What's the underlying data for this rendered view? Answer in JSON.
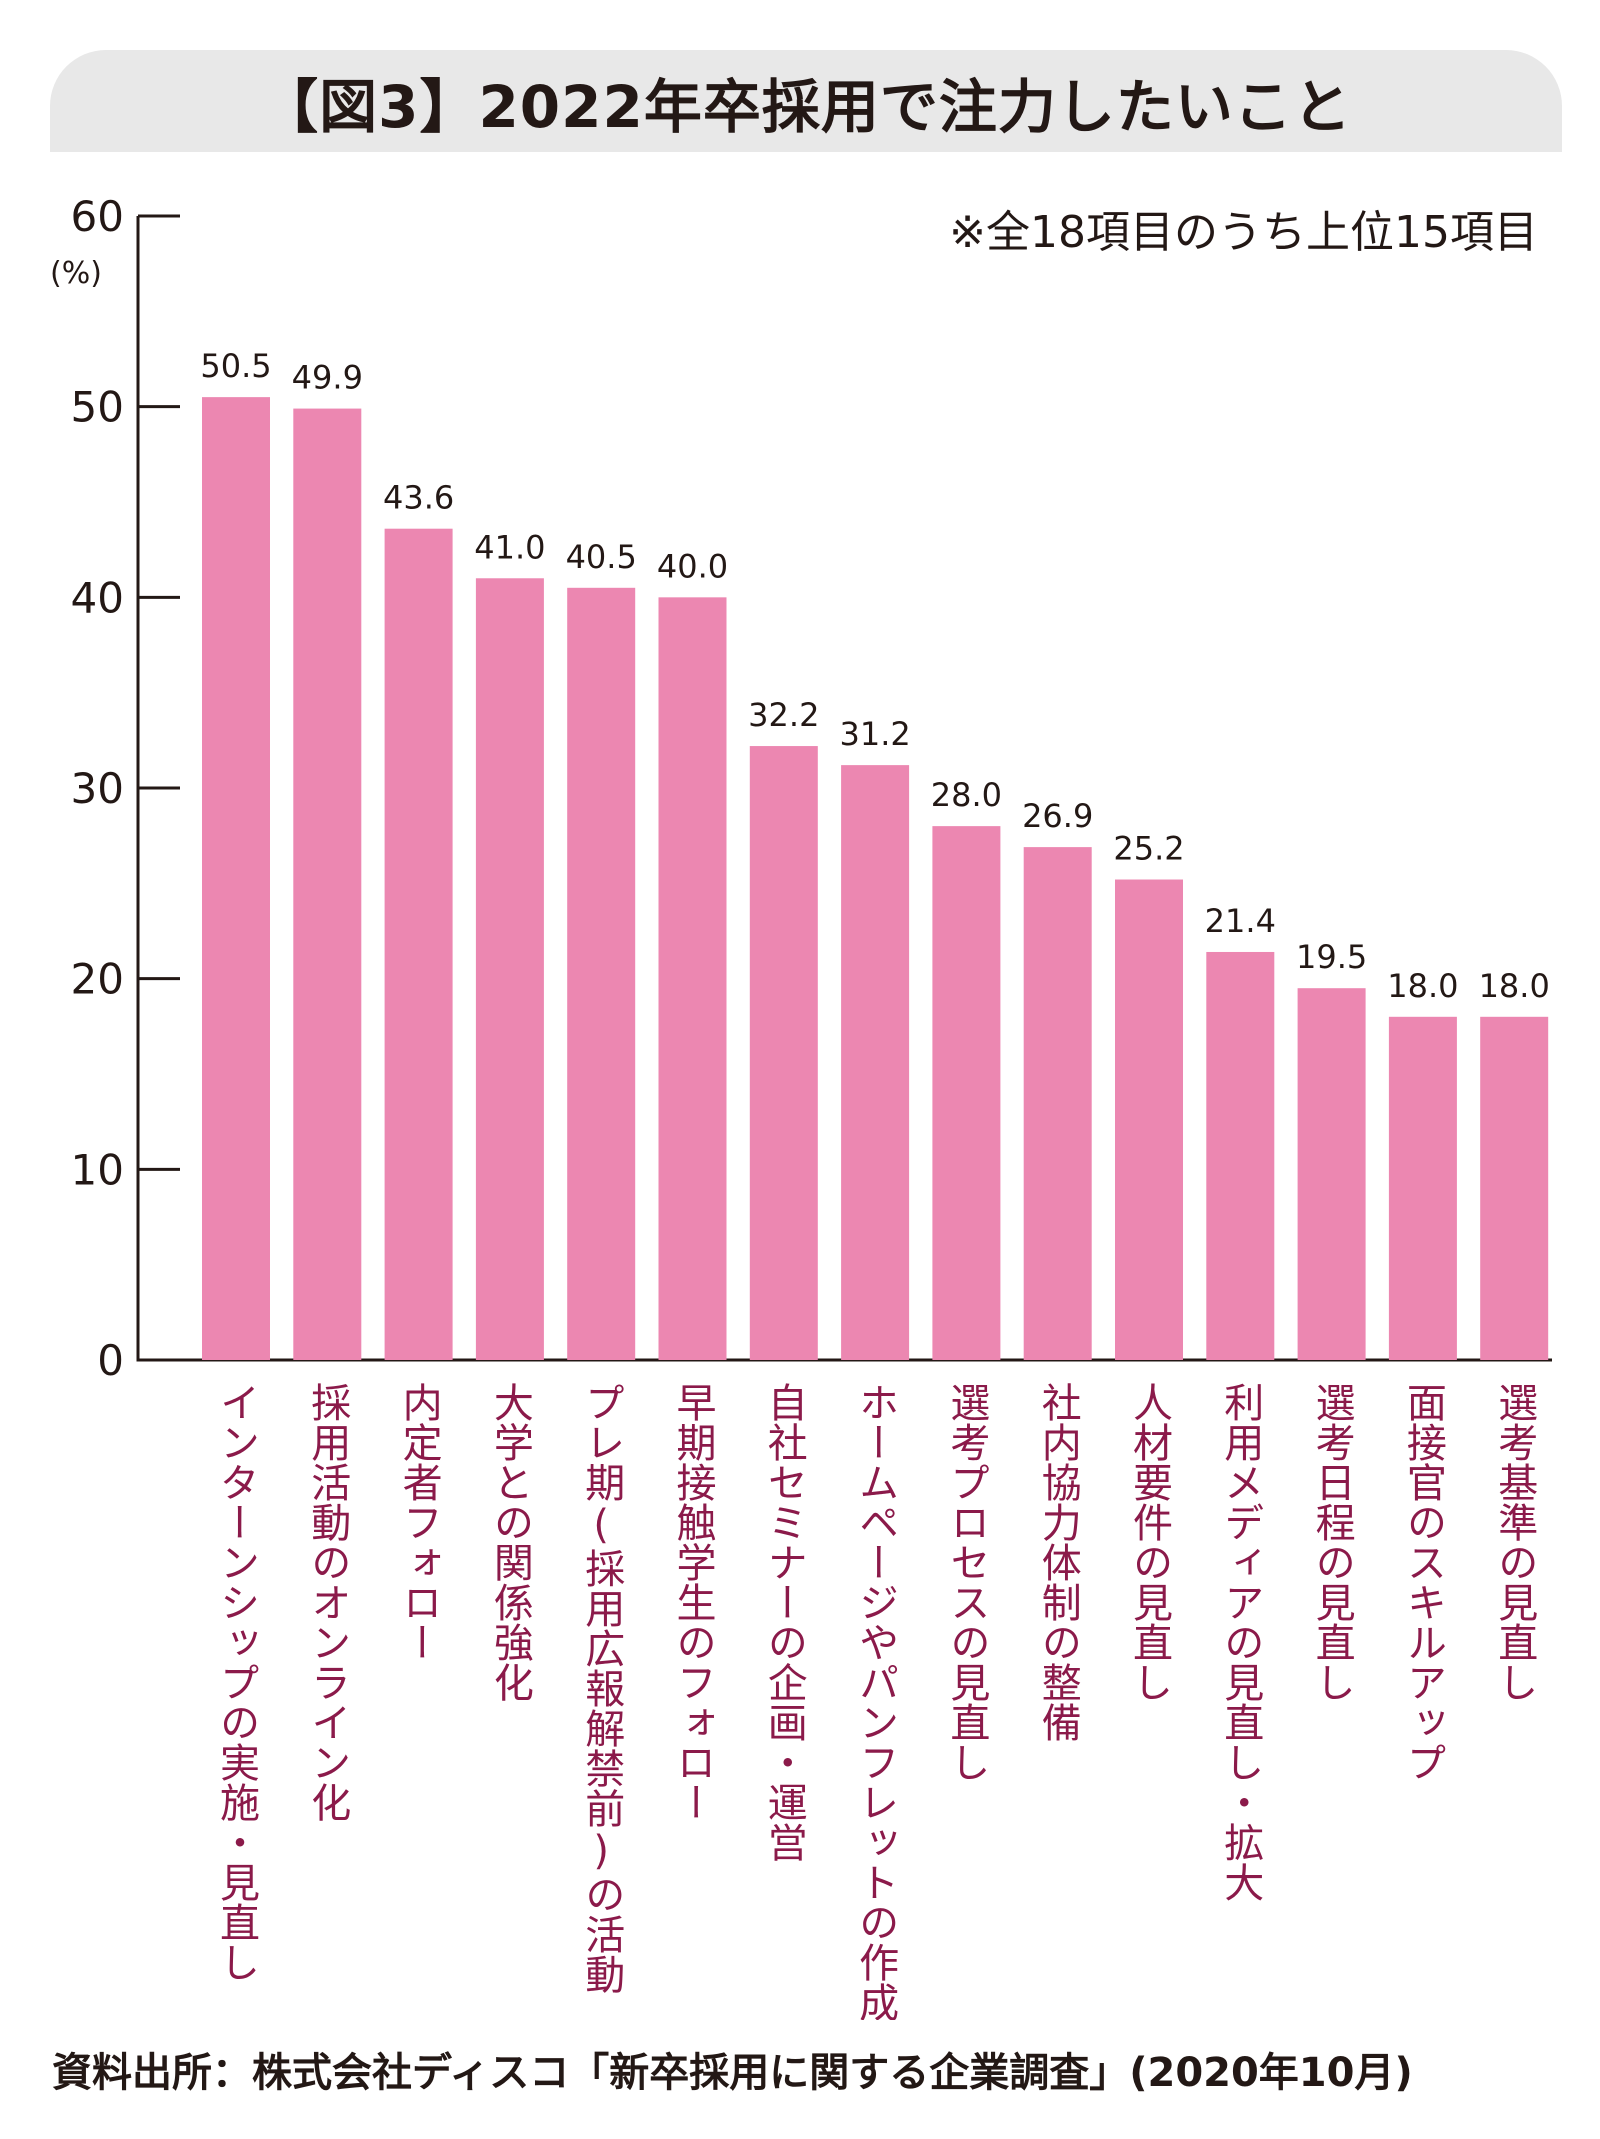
{
  "title": "【図3】2022年卒採用で注力したいこと",
  "note": "※全18項目のうち上位15項目",
  "unit": "(%)",
  "source": "資料出所：株式会社ディスコ「新卒採用に関する企業調査」(2020年10月)",
  "colors": {
    "bar": "#ec87b1",
    "category_text": "#8b1a4a",
    "title_bg": "#e8e8e8",
    "axis": "#231815"
  },
  "chart_data": {
    "type": "bar",
    "ylim": [
      0,
      60
    ],
    "yticks": [
      0,
      10,
      20,
      30,
      40,
      50,
      60
    ],
    "grid": false,
    "categories": [
      "インターンシップの実施・見直し",
      "採用活動のオンライン化",
      "内定者フォロー",
      "大学との関係強化",
      "プレ期(採用広報解禁前)の活動",
      "早期接触学生のフォロー",
      "自社セミナーの企画・運営",
      "ホームページやパンフレットの作成",
      "選考プロセスの見直し",
      "社内協力体制の整備",
      "人材要件の見直し",
      "利用メディアの見直し・拡大",
      "選考日程の見直し",
      "面接官のスキルアップ",
      "選考基準の見直し"
    ],
    "values": [
      50.5,
      49.9,
      43.6,
      41.0,
      40.5,
      40.0,
      32.2,
      31.2,
      28.0,
      26.9,
      25.2,
      21.4,
      19.5,
      18.0,
      18.0
    ],
    "value_labels": [
      "50.5",
      "49.9",
      "43.6",
      "41.0",
      "40.5",
      "40.0",
      "32.2",
      "31.2",
      "28.0",
      "26.9",
      "25.2",
      "21.4",
      "19.5",
      "18.0",
      "18.0"
    ]
  }
}
